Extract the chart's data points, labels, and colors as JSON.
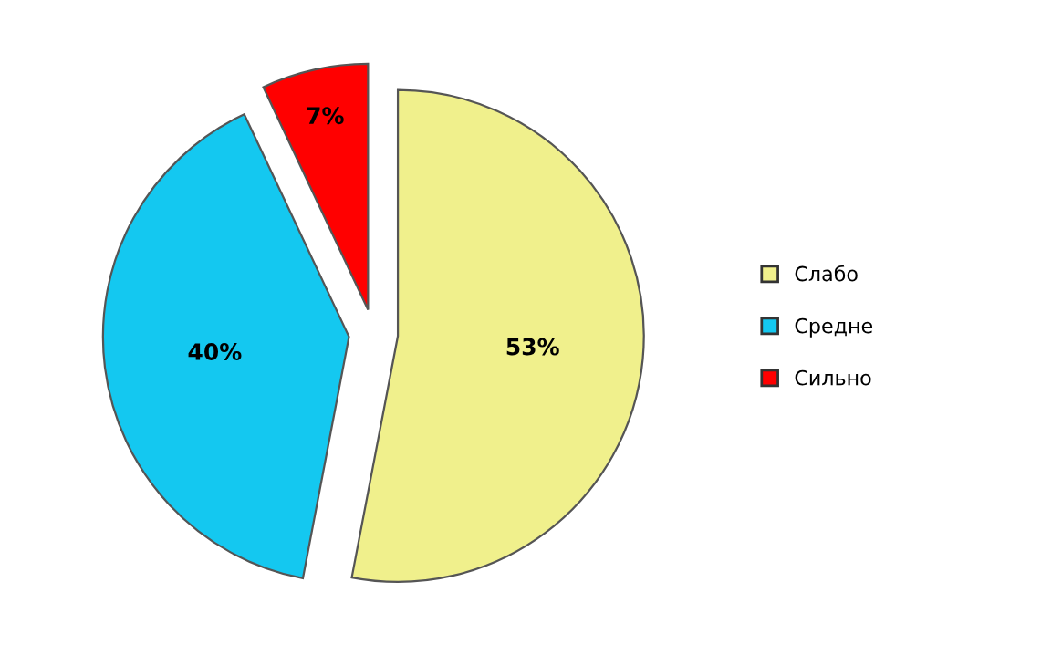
{
  "chart_data": {
    "type": "pie",
    "categories": [
      "Слабо",
      "Средне",
      "Сильно"
    ],
    "values": [
      53,
      40,
      7
    ],
    "value_labels": [
      "53%",
      "40%",
      "7%"
    ],
    "colors": [
      "#f0f08c",
      "#14c8f0",
      "#ff0000"
    ],
    "legend": "right"
  }
}
